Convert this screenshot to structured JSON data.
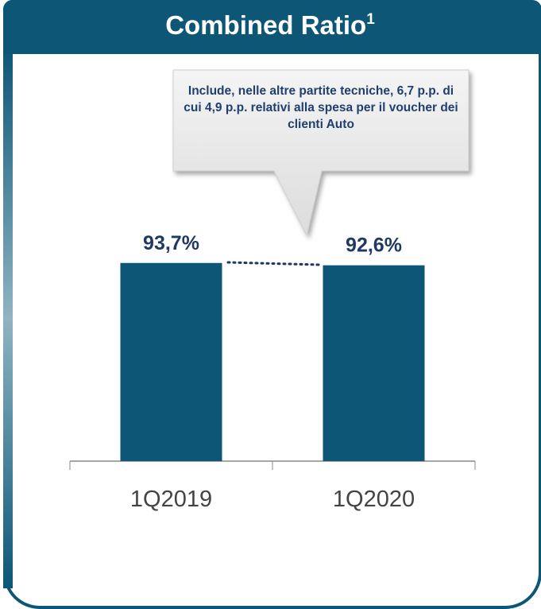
{
  "chart_data": {
    "type": "bar",
    "title": "Combined Ratio",
    "title_footnote": "1",
    "annotation": "Include, nelle altre partite tecniche, 6,7 p.p. di cui 4,9 p.p. relativi alla spesa per il voucher dei clienti Auto",
    "categories": [
      "1Q2019",
      "1Q2020"
    ],
    "values": [
      93.7,
      92.6
    ],
    "value_labels": [
      "93,7%",
      "92,6%"
    ],
    "color": "#0d5676",
    "ylim": [
      0,
      100
    ]
  }
}
